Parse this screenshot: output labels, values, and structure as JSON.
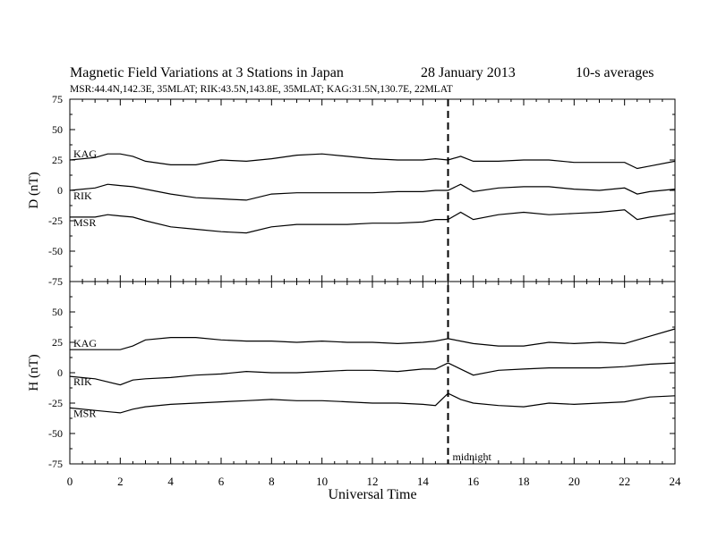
{
  "header": {
    "title": "Magnetic Field Variations at 3 Stations in Japan",
    "date": "28 January 2013",
    "averaging": "10-s averages",
    "stations_line": "MSR:44.4N,142.3E, 35MLAT;  RIK:43.5N,143.8E, 35MLAT;  KAG:31.5N,130.7E, 22MLAT"
  },
  "annotations": {
    "midnight_label": "midnight",
    "midnight_ut": 15
  },
  "colors": {
    "line": "#000000",
    "axis": "#000000",
    "background": "#ffffff"
  },
  "chart_data": [
    {
      "type": "line",
      "panel": "top",
      "ylabel": "D (nT)",
      "xlabel": "",
      "xlim": [
        0,
        24
      ],
      "ylim": [
        -75,
        75
      ],
      "yticks": [
        "75",
        "50",
        "25",
        "0",
        "-25",
        "-50",
        "-75"
      ],
      "x": [
        0,
        1,
        1.5,
        2,
        2.5,
        3,
        4,
        5,
        6,
        7,
        8,
        9,
        10,
        11,
        12,
        13,
        14,
        14.5,
        15,
        15.5,
        16,
        17,
        18,
        19,
        20,
        21,
        22,
        22.5,
        23,
        24
      ],
      "series": [
        {
          "name": "KAG",
          "values": [
            25,
            27,
            30,
            30,
            28,
            24,
            21,
            21,
            25,
            24,
            26,
            29,
            30,
            28,
            26,
            25,
            25,
            26,
            25,
            28,
            24,
            24,
            25,
            25,
            23,
            23,
            23,
            18,
            20,
            24
          ]
        },
        {
          "name": "RIK",
          "values": [
            0,
            2,
            5,
            4,
            3,
            1,
            -3,
            -6,
            -7,
            -8,
            -3,
            -2,
            -2,
            -2,
            -2,
            -1,
            -1,
            0,
            0,
            5,
            -1,
            2,
            3,
            3,
            1,
            0,
            2,
            -3,
            -1,
            1
          ]
        },
        {
          "name": "MSR",
          "values": [
            -22,
            -22,
            -20,
            -21,
            -22,
            -25,
            -30,
            -32,
            -34,
            -35,
            -30,
            -28,
            -28,
            -28,
            -27,
            -27,
            -26,
            -24,
            -24,
            -18,
            -24,
            -20,
            -18,
            -20,
            -19,
            -18,
            -16,
            -24,
            -22,
            -19
          ]
        }
      ]
    },
    {
      "type": "line",
      "panel": "bottom",
      "ylabel": "H (nT)",
      "xlabel": "Universal Time",
      "xlim": [
        0,
        24
      ],
      "ylim": [
        -75,
        75
      ],
      "yticks": [
        "75",
        "50",
        "25",
        "0",
        "-25",
        "-50",
        "-75"
      ],
      "xticks": [
        "0",
        "2",
        "4",
        "6",
        "8",
        "10",
        "12",
        "14",
        "16",
        "18",
        "20",
        "22",
        "24"
      ],
      "x": [
        0,
        1,
        2,
        2.5,
        3,
        4,
        5,
        6,
        7,
        8,
        9,
        10,
        11,
        12,
        13,
        14,
        14.5,
        15,
        15.5,
        16,
        17,
        18,
        19,
        20,
        21,
        22,
        23,
        24
      ],
      "series": [
        {
          "name": "KAG",
          "values": [
            19,
            19,
            19,
            22,
            27,
            29,
            29,
            27,
            26,
            26,
            25,
            26,
            25,
            25,
            24,
            25,
            26,
            28,
            26,
            24,
            22,
            22,
            25,
            24,
            25,
            24,
            30,
            36
          ]
        },
        {
          "name": "RIK",
          "values": [
            -3,
            -5,
            -10,
            -6,
            -5,
            -4,
            -2,
            -1,
            1,
            0,
            0,
            1,
            2,
            2,
            1,
            3,
            3,
            8,
            3,
            -2,
            2,
            3,
            4,
            4,
            4,
            5,
            7,
            8
          ]
        },
        {
          "name": "MSR",
          "values": [
            -29,
            -31,
            -33,
            -30,
            -28,
            -26,
            -25,
            -24,
            -23,
            -22,
            -23,
            -23,
            -24,
            -25,
            -25,
            -26,
            -27,
            -17,
            -22,
            -25,
            -27,
            -28,
            -25,
            -26,
            -25,
            -24,
            -20,
            -19
          ]
        }
      ]
    }
  ]
}
